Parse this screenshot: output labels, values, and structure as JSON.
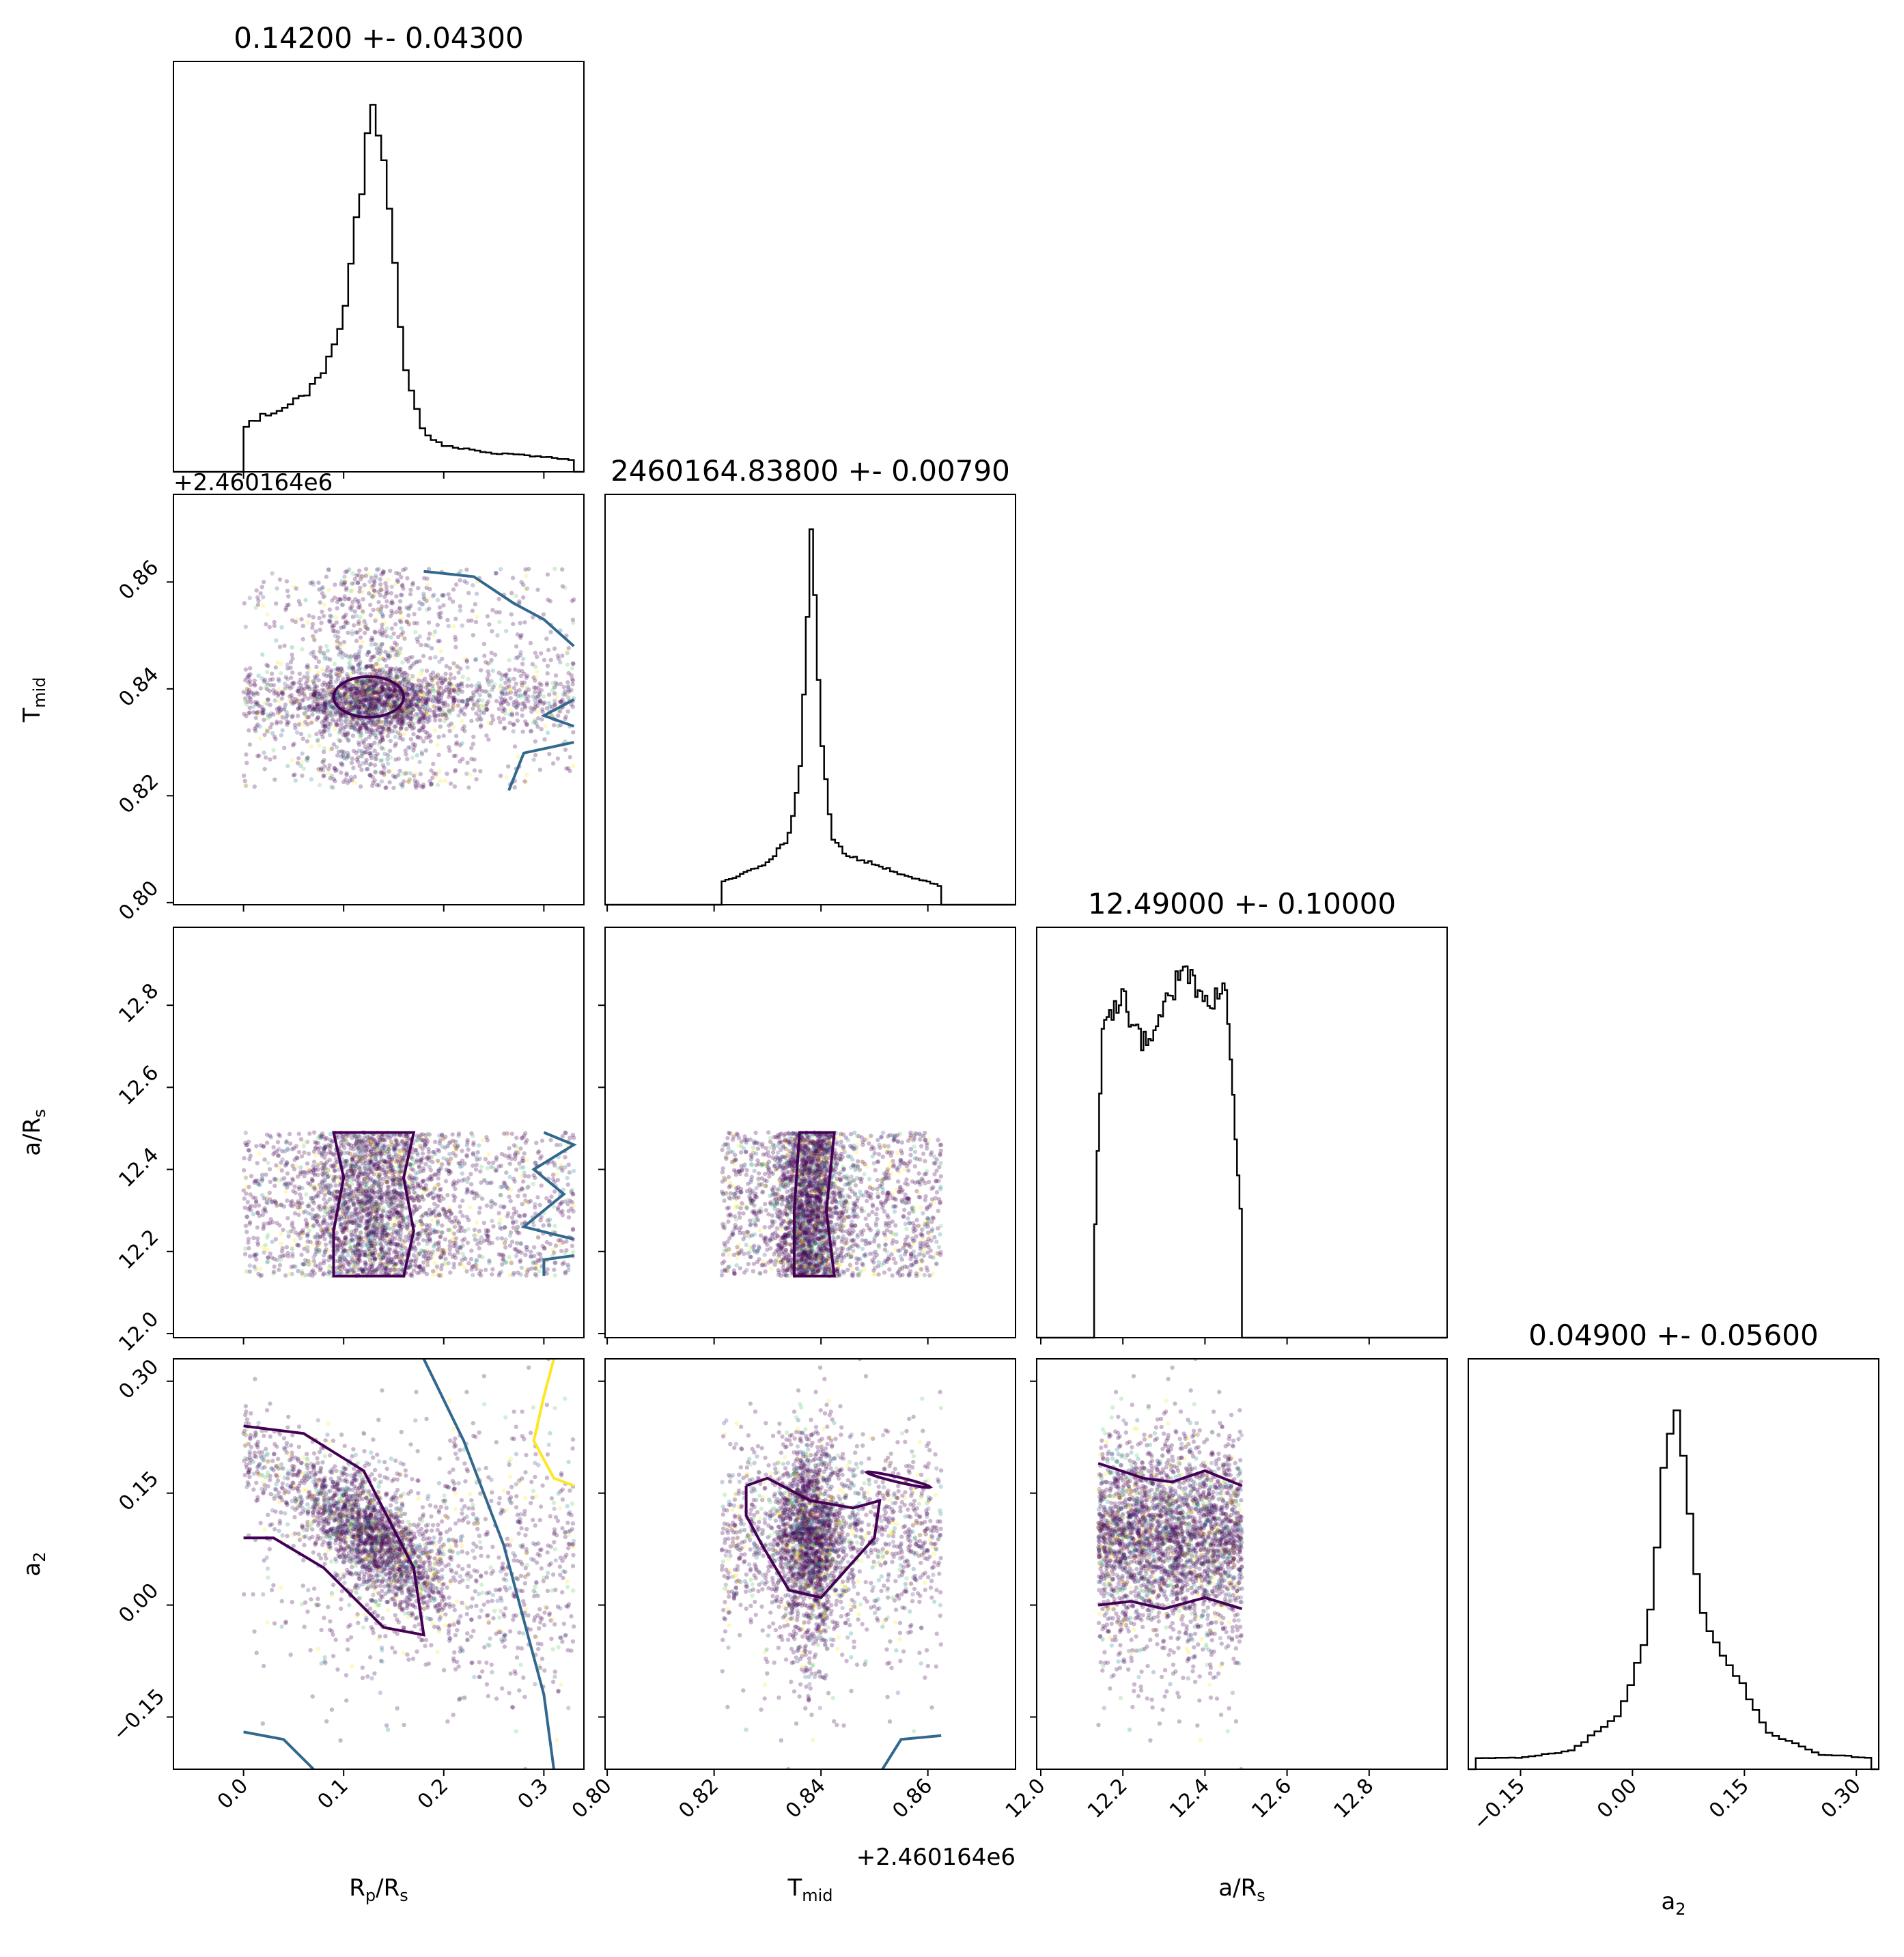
{
  "chart_data": {
    "type": "corner",
    "parameters": [
      {
        "key": "rp",
        "label_main": "R",
        "label_sub": "p",
        "label_tail": "/R",
        "label_sub2": "s",
        "title": "0.14200 +- 0.04300",
        "range": [
          -0.07,
          0.34
        ],
        "ticks": [
          0.0,
          0.1,
          0.2,
          0.3
        ],
        "tick_labels": [
          "0.0",
          "0.1",
          "0.2",
          "0.3"
        ]
      },
      {
        "key": "tmid",
        "label_main": "T",
        "label_sub": "mid",
        "label_tail": "",
        "label_sub2": "",
        "title": "2460164.83800 +- 0.00790",
        "range": [
          0.7996,
          0.8764
        ],
        "ticks": [
          0.8,
          0.82,
          0.84,
          0.86
        ],
        "tick_labels": [
          "0.80",
          "0.82",
          "0.84",
          "0.86"
        ],
        "offset_label": "+2.460164e6"
      },
      {
        "key": "ars",
        "label_main": "a/R",
        "label_sub": "s",
        "label_tail": "",
        "label_sub2": "",
        "title": "12.49000 +- 0.10000",
        "range": [
          11.99,
          12.99
        ],
        "ticks": [
          12.0,
          12.2,
          12.4,
          12.6,
          12.8
        ],
        "tick_labels": [
          "12.0",
          "12.2",
          "12.4",
          "12.6",
          "12.8"
        ]
      },
      {
        "key": "a2",
        "label_main": "a",
        "label_sub": "2",
        "label_tail": "",
        "label_sub2": "",
        "title": "0.04900 +- 0.05600",
        "range": [
          -0.22,
          0.33
        ],
        "ticks": [
          -0.15,
          0.0,
          0.15,
          0.3
        ],
        "tick_labels": [
          "−0.15",
          "0.00",
          "0.15",
          "0.30"
        ]
      }
    ],
    "histograms": {
      "rp": {
        "x": [
          0.0,
          0.02,
          0.04,
          0.06,
          0.08,
          0.1,
          0.12,
          0.13,
          0.14,
          0.16,
          0.18,
          0.2,
          0.25,
          0.3,
          0.33
        ],
        "density": [
          0.12,
          0.15,
          0.17,
          0.2,
          0.27,
          0.4,
          0.8,
          1.0,
          0.85,
          0.3,
          0.1,
          0.07,
          0.05,
          0.04,
          0.03
        ]
      },
      "tmid": {
        "x": [
          0.8214,
          0.825,
          0.83,
          0.834,
          0.836,
          0.8375,
          0.838,
          0.8385,
          0.84,
          0.842,
          0.845,
          0.85,
          0.855,
          0.86,
          0.8625
        ],
        "density": [
          0.06,
          0.08,
          0.11,
          0.18,
          0.35,
          0.75,
          1.0,
          0.95,
          0.45,
          0.18,
          0.13,
          0.11,
          0.08,
          0.06,
          0.05
        ]
      },
      "ars": {
        "x": [
          12.13,
          12.15,
          12.2,
          12.25,
          12.3,
          12.35,
          12.4,
          12.45,
          12.49
        ],
        "density": [
          0.2,
          0.82,
          0.9,
          0.78,
          0.88,
          0.98,
          0.87,
          0.96,
          0.3
        ]
      },
      "a2": {
        "x": [
          -0.21,
          -0.15,
          -0.08,
          -0.02,
          0.02,
          0.04,
          0.06,
          0.08,
          0.1,
          0.14,
          0.18,
          0.25,
          0.32
        ],
        "density": [
          0.03,
          0.03,
          0.05,
          0.14,
          0.35,
          0.75,
          1.0,
          0.6,
          0.37,
          0.25,
          0.1,
          0.04,
          0.03
        ]
      }
    },
    "scatter_color_scale": [
      "#440154",
      "#3b528b",
      "#21918c",
      "#5ec962",
      "#fde725"
    ],
    "contour_colors": {
      "inner": "#440154",
      "outer": "#31688e",
      "far": "#fde725"
    }
  }
}
